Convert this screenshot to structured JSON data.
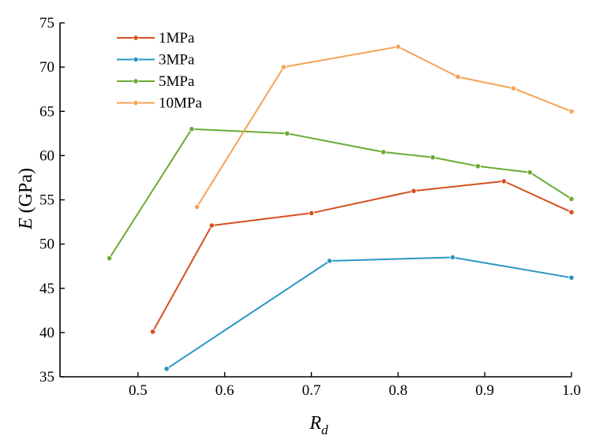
{
  "chart_data": {
    "type": "line",
    "title": "",
    "xlabel": "R",
    "xlabel_sub": "d",
    "ylabel": "E",
    "ylabel_unit": "(GPa)",
    "xlim": [
      0.41,
      1.0
    ],
    "ylim": [
      35,
      75
    ],
    "xticks": [
      0.5,
      0.6,
      0.7,
      0.8,
      0.9,
      1.0
    ],
    "xtick_labels": [
      "0.5",
      "0.6",
      "0.7",
      "0.8",
      "0.9",
      "1.0"
    ],
    "yticks": [
      35,
      40,
      45,
      50,
      55,
      60,
      65,
      70,
      75
    ],
    "ytick_labels": [
      "35",
      "40",
      "45",
      "50",
      "55",
      "60",
      "65",
      "70",
      "75"
    ],
    "grid": false,
    "legend_position": "top-left",
    "series": [
      {
        "name": "1MPa",
        "color": "#d4501e",
        "x": [
          0.517,
          0.585,
          0.7,
          0.818,
          0.922,
          1.0
        ],
        "y": [
          40.1,
          52.1,
          53.5,
          56.0,
          57.1,
          53.6
        ]
      },
      {
        "name": "3MPa",
        "color": "#2a96c4",
        "x": [
          0.533,
          0.721,
          0.863,
          1.0
        ],
        "y": [
          35.9,
          48.1,
          48.5,
          46.2
        ]
      },
      {
        "name": "5MPa",
        "color": "#6aab33",
        "x": [
          0.467,
          0.562,
          0.672,
          0.783,
          0.84,
          0.892,
          0.952,
          1.0
        ],
        "y": [
          48.4,
          63.0,
          62.5,
          60.4,
          59.8,
          58.8,
          58.1,
          55.1
        ]
      },
      {
        "name": "10MPa",
        "color": "#f5a354",
        "x": [
          0.568,
          0.668,
          0.8,
          0.869,
          0.933,
          1.0
        ],
        "y": [
          54.2,
          70.0,
          72.3,
          68.9,
          67.6,
          65.0
        ]
      }
    ]
  }
}
